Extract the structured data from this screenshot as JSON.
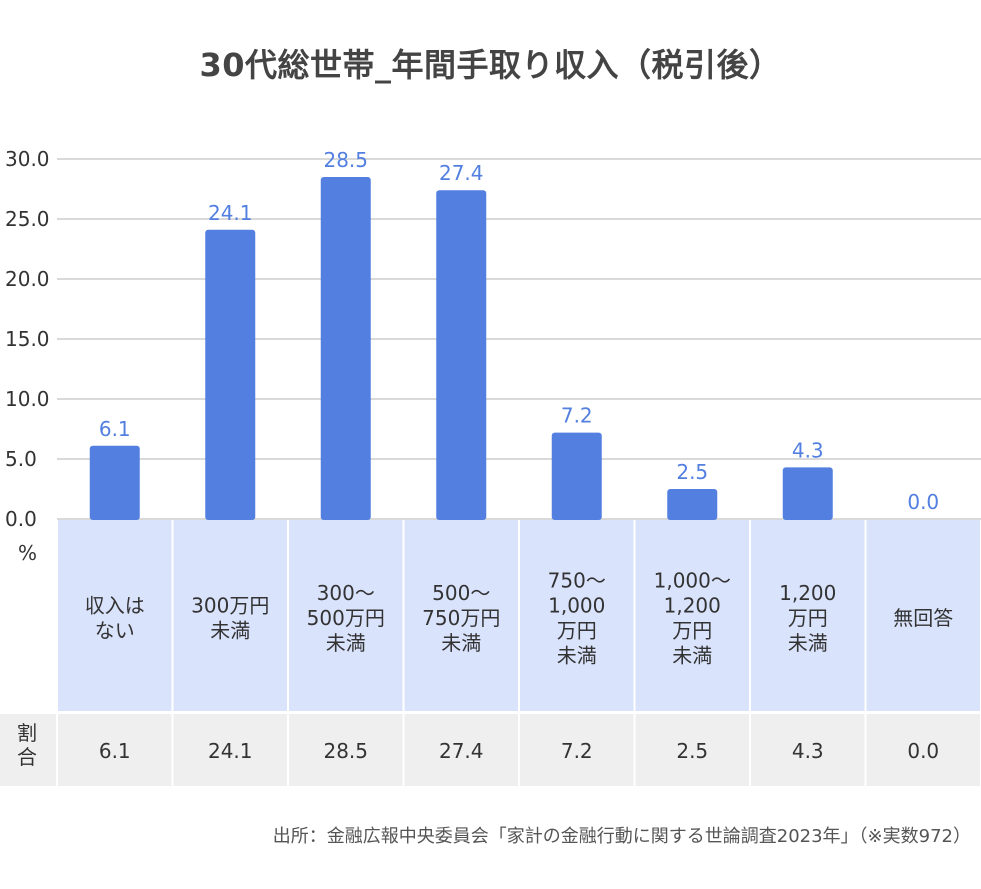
{
  "title": "30代総世帯_年間手取り収入（税引後）",
  "source_note": "出所：金融広報中央委員会「家計の金融行動に関する世論調査2023年」（※実数972）",
  "colors": {
    "bar": "#527fe0",
    "label": "#527fe0",
    "grid": "#d9d9d9",
    "category_bg": "#dae3fc",
    "row_bg": "#efefef"
  },
  "chart_data": {
    "type": "bar",
    "title": "30代総世帯_年間手取り収入（税引後）",
    "ylabel": "%",
    "ylim": [
      0,
      30
    ],
    "yticks": [
      "0.0",
      "5.0",
      "10.0",
      "15.0",
      "20.0",
      "25.0",
      "30.0"
    ],
    "grid": true,
    "categories": [
      [
        "収入は",
        "ない"
      ],
      [
        "300万円",
        "未満"
      ],
      [
        "300〜",
        "500万円",
        "未満"
      ],
      [
        "500〜",
        "750万円",
        "未満"
      ],
      [
        "750〜",
        "1,000",
        "万円",
        "未満"
      ],
      [
        "1,000〜",
        "1,200",
        "万円",
        "未満"
      ],
      [
        "1,200",
        "万円",
        "未満"
      ],
      [
        "無回答"
      ]
    ],
    "values": [
      6.1,
      24.1,
      28.5,
      27.4,
      7.2,
      2.5,
      4.3,
      0.0
    ],
    "data_labels": [
      "6.1",
      "24.1",
      "28.5",
      "27.4",
      "7.2",
      "2.5",
      "4.3",
      "0.0"
    ],
    "table_row_label": [
      "割",
      "合"
    ],
    "table_values": [
      "6.1",
      "24.1",
      "28.5",
      "27.4",
      "7.2",
      "2.5",
      "4.3",
      "0.0"
    ]
  }
}
